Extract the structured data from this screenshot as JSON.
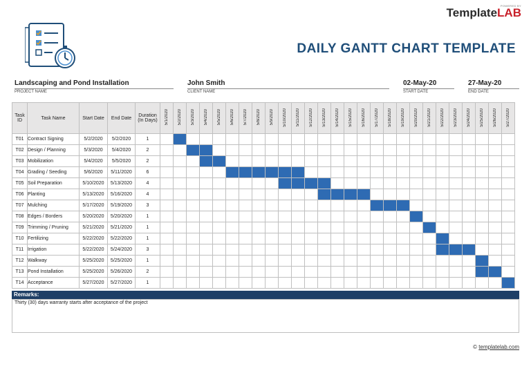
{
  "brand": {
    "small": "POWERED BY",
    "name_a": "Template",
    "name_b": "LAB"
  },
  "title": "DAILY GANTT CHART TEMPLATE",
  "project": {
    "value": "Landscaping and Pond Installation",
    "label": "PROJECT NAME"
  },
  "client": {
    "value": "John Smith",
    "label": "CLIENT NAME"
  },
  "start": {
    "value": "02-May-20",
    "label": "START DATE"
  },
  "end": {
    "value": "27-May-20",
    "label": "END DATE"
  },
  "headers": {
    "id": "Task ID",
    "name": "Task Name",
    "start": "Start Date",
    "end": "End Date",
    "duration": "Duration (In Days)"
  },
  "dates": [
    "5/1/2020",
    "5/2/2020",
    "5/3/2020",
    "5/4/2020",
    "5/5/2020",
    "5/6/2020",
    "5/7/2020",
    "5/8/2020",
    "5/9/2020",
    "5/10/2020",
    "5/11/2020",
    "5/12/2020",
    "5/13/2020",
    "5/14/2020",
    "5/15/2020",
    "5/16/2020",
    "5/17/2020",
    "5/18/2020",
    "5/19/2020",
    "5/20/2020",
    "5/21/2020",
    "5/22/2020",
    "5/23/2020",
    "5/24/2020",
    "5/25/2020",
    "5/26/2020",
    "5/27/2020"
  ],
  "tasks": [
    {
      "id": "T01",
      "name": "Contract Signing",
      "start": "5/2/2020",
      "end": "5/2/2020",
      "dur": "1",
      "s": 1,
      "d": 1
    },
    {
      "id": "T02",
      "name": "Design / Planning",
      "start": "5/3/2020",
      "end": "5/4/2020",
      "dur": "2",
      "s": 2,
      "d": 2
    },
    {
      "id": "T03",
      "name": "Mobilization",
      "start": "5/4/2020",
      "end": "5/5/2020",
      "dur": "2",
      "s": 3,
      "d": 2
    },
    {
      "id": "T04",
      "name": "Grading / Seeding",
      "start": "5/6/2020",
      "end": "5/11/2020",
      "dur": "6",
      "s": 5,
      "d": 6
    },
    {
      "id": "T05",
      "name": "Soil Preparation",
      "start": "5/10/2020",
      "end": "5/13/2020",
      "dur": "4",
      "s": 9,
      "d": 4
    },
    {
      "id": "T06",
      "name": "Planting",
      "start": "5/13/2020",
      "end": "5/16/2020",
      "dur": "4",
      "s": 12,
      "d": 4
    },
    {
      "id": "T07",
      "name": "Mulching",
      "start": "5/17/2020",
      "end": "5/19/2020",
      "dur": "3",
      "s": 16,
      "d": 3
    },
    {
      "id": "T08",
      "name": "Edges / Borders",
      "start": "5/20/2020",
      "end": "5/20/2020",
      "dur": "1",
      "s": 19,
      "d": 1
    },
    {
      "id": "T09",
      "name": "Trimming / Pruning",
      "start": "5/21/2020",
      "end": "5/21/2020",
      "dur": "1",
      "s": 20,
      "d": 1
    },
    {
      "id": "T10",
      "name": "Fertilizing",
      "start": "5/22/2020",
      "end": "5/22/2020",
      "dur": "1",
      "s": 21,
      "d": 1
    },
    {
      "id": "T11",
      "name": "Irrigation",
      "start": "5/22/2020",
      "end": "5/24/2020",
      "dur": "3",
      "s": 21,
      "d": 3
    },
    {
      "id": "T12",
      "name": "Walkway",
      "start": "5/25/2020",
      "end": "5/25/2020",
      "dur": "1",
      "s": 24,
      "d": 1
    },
    {
      "id": "T13",
      "name": "Pond Installation",
      "start": "5/25/2020",
      "end": "5/26/2020",
      "dur": "2",
      "s": 24,
      "d": 2
    },
    {
      "id": "T14",
      "name": "Acceptance",
      "start": "5/27/2020",
      "end": "5/27/2020",
      "dur": "1",
      "s": 26,
      "d": 1
    }
  ],
  "remarks": {
    "label": "Remarks:",
    "text": "Thirty (30) days warranty starts after acceptance of the project"
  },
  "footer": {
    "symbol": "©",
    "link": "templatelab.com"
  },
  "colors": {
    "bar": "#2e6bb3",
    "title": "#1f4e79",
    "remarks_bg": "#1f3f66"
  }
}
